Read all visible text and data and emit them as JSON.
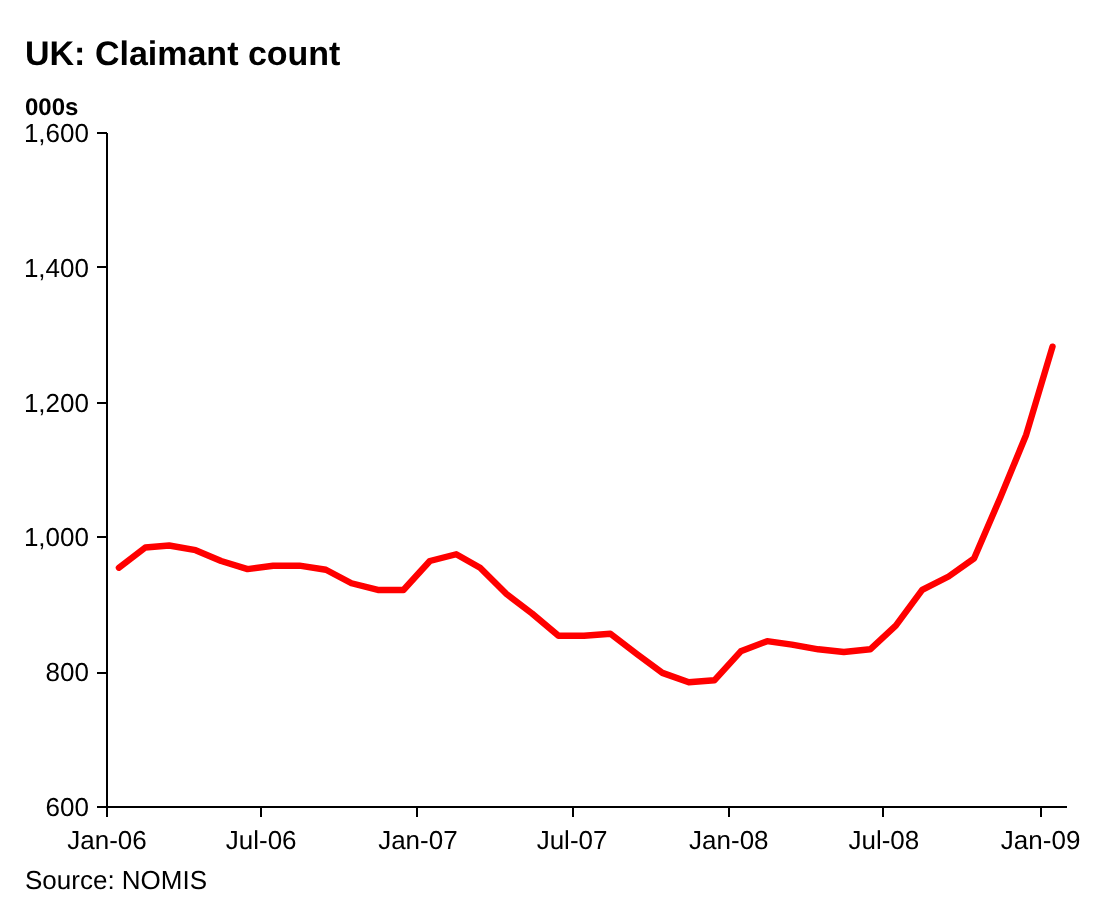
{
  "chart_data": {
    "type": "line",
    "title": "UK: Claimant count",
    "ylabel": "000s",
    "annotations": [
      "Source: NOMIS"
    ],
    "x": [
      "2006-01-15",
      "2006-02-15",
      "2006-03-15",
      "2006-04-15",
      "2006-05-15",
      "2006-06-15",
      "2006-07-15",
      "2006-08-15",
      "2006-09-15",
      "2006-10-15",
      "2006-11-15",
      "2006-12-15",
      "2007-01-15",
      "2007-02-15",
      "2007-03-15",
      "2007-04-15",
      "2007-05-15",
      "2007-06-15",
      "2007-07-15",
      "2007-08-15",
      "2007-09-15",
      "2007-10-15",
      "2007-11-15",
      "2007-12-15",
      "2008-01-15",
      "2008-02-15",
      "2008-03-15",
      "2008-04-15",
      "2008-05-15",
      "2008-06-15",
      "2008-07-15",
      "2008-08-15",
      "2008-09-15",
      "2008-10-15",
      "2008-11-15",
      "2008-12-15",
      "2009-01-15"
    ],
    "series": [
      {
        "color": "#ff0000",
        "values": [
          955,
          985,
          988,
          981,
          965,
          953,
          958,
          958,
          952,
          932,
          922,
          922,
          965,
          975,
          955,
          916,
          887,
          854,
          854,
          857,
          827,
          799,
          785,
          788,
          831,
          846,
          841,
          834,
          830,
          834,
          869,
          922,
          942,
          969,
          1060,
          1152,
          1283
        ]
      }
    ],
    "xlim": [
      "2006-01-01",
      "2009-02-01"
    ],
    "xticks": [
      {
        "value": "2006-01-01",
        "label": "Jan-06"
      },
      {
        "value": "2006-07-01",
        "label": "Jul-06"
      },
      {
        "value": "2007-01-01",
        "label": "Jan-07"
      },
      {
        "value": "2007-07-01",
        "label": "Jul-07"
      },
      {
        "value": "2008-01-01",
        "label": "Jan-08"
      },
      {
        "value": "2008-07-01",
        "label": "Jul-08"
      },
      {
        "value": "2009-01-01",
        "label": "Jan-09"
      }
    ],
    "ylim": [
      600,
      1600
    ],
    "yticks": [
      {
        "value": 600,
        "label": "600"
      },
      {
        "value": 800,
        "label": "800"
      },
      {
        "value": 1000,
        "label": "1,000"
      },
      {
        "value": 1200,
        "label": "1,200"
      },
      {
        "value": 1400,
        "label": "1,400"
      },
      {
        "value": 1600,
        "label": "1,600"
      }
    ],
    "grid": false,
    "line_style": "solid"
  }
}
